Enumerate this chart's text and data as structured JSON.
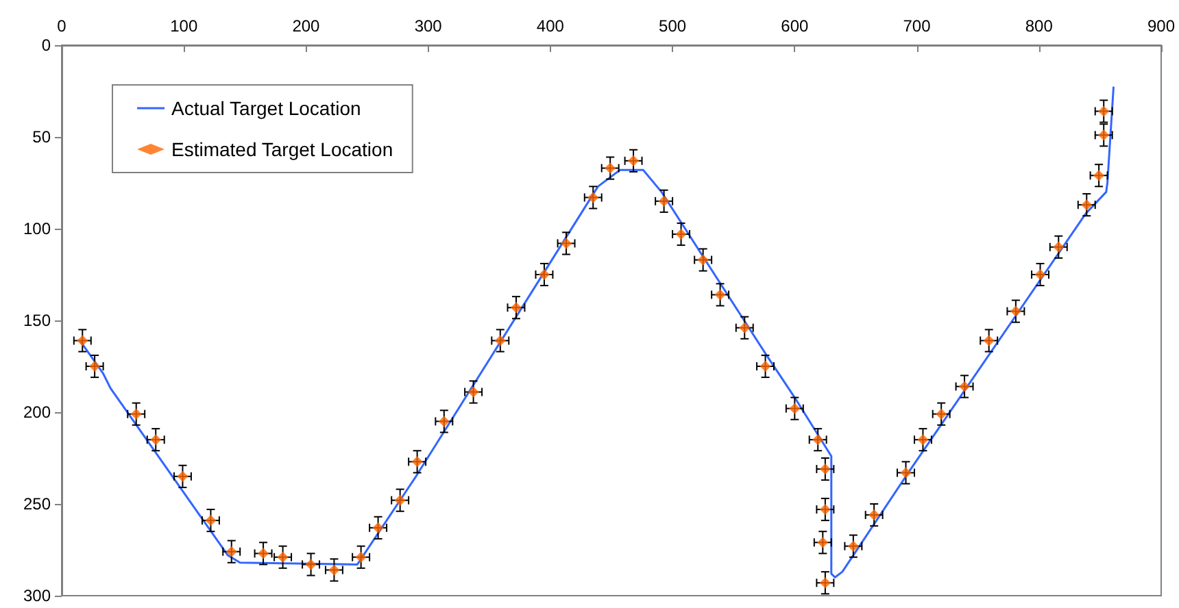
{
  "chart_data": {
    "type": "line",
    "xlim": [
      0,
      900
    ],
    "xticks": [
      0,
      100,
      200,
      300,
      400,
      500,
      600,
      700,
      800,
      900
    ],
    "ylim": [
      300,
      0
    ],
    "yticks": [
      0,
      50,
      100,
      150,
      200,
      250,
      300
    ],
    "grid": false,
    "legend": "top left",
    "series": [
      {
        "name": "Actual Target Location",
        "type": "line",
        "color": "#3366ff",
        "marker": "none",
        "line_style": "solid",
        "x": [
          16,
          34,
          40,
          136,
          146,
          242,
          286,
          290,
          439,
          457,
          476,
          491,
          577,
          600,
          630,
          630,
          630,
          633,
          639,
          693,
          838,
          855,
          856,
          861
        ],
        "values": [
          162,
          179,
          187,
          278,
          282,
          283,
          239,
          235,
          77,
          68,
          68,
          80,
          169,
          192,
          224,
          229,
          288,
          290,
          287,
          233,
          92,
          80,
          75,
          23
        ]
      },
      {
        "name": "Estimated Target Location",
        "type": "scatter",
        "color": "#ff6600",
        "marker": "diamond",
        "x": [
          17,
          27,
          61,
          77,
          99,
          122,
          139,
          165,
          181,
          204,
          223,
          245,
          259,
          277,
          291,
          313,
          337,
          359,
          372,
          395,
          413,
          435,
          449,
          468,
          493,
          507,
          525,
          539,
          559,
          576,
          600,
          619,
          625,
          625,
          623,
          625,
          648,
          665,
          691,
          705,
          720,
          739,
          759,
          781,
          801,
          816,
          839,
          849,
          853,
          853
        ],
        "values": [
          161,
          175,
          201,
          215,
          235,
          259,
          276,
          277,
          279,
          283,
          286,
          279,
          263,
          248,
          227,
          205,
          189,
          161,
          143,
          125,
          108,
          83,
          67,
          63,
          85,
          103,
          117,
          136,
          154,
          175,
          198,
          215,
          231,
          253,
          271,
          293,
          273,
          256,
          233,
          215,
          201,
          186,
          161,
          145,
          125,
          110,
          87,
          71,
          49,
          36
        ],
        "errors": [
          6,
          6,
          6,
          6,
          6,
          6,
          6,
          6,
          6,
          6,
          6,
          6,
          6,
          6,
          6,
          6,
          6,
          6,
          6,
          6,
          6,
          6,
          6,
          6,
          6,
          6,
          6,
          6,
          6,
          6,
          6,
          6,
          6,
          6,
          6,
          6,
          6,
          6,
          6,
          6,
          6,
          6,
          6,
          6,
          6,
          6,
          6,
          6,
          6,
          6
        ],
        "xerrors": [
          7,
          7,
          7,
          7,
          7,
          7,
          7,
          7,
          7,
          7,
          7,
          7,
          7,
          7,
          7,
          7,
          7,
          7,
          7,
          7,
          7,
          7,
          7,
          7,
          7,
          7,
          7,
          7,
          7,
          7,
          7,
          7,
          7,
          7,
          7,
          7,
          7,
          7,
          7,
          7,
          7,
          7,
          7,
          7,
          7,
          7,
          7,
          7,
          7,
          7
        ]
      }
    ]
  }
}
